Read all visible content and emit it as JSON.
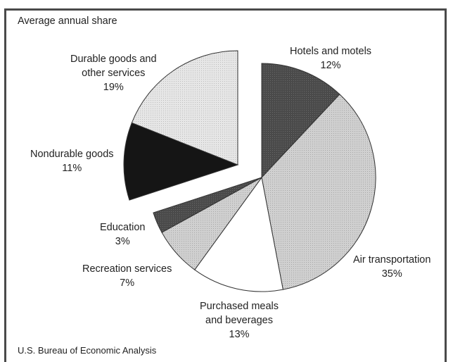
{
  "chart_data": {
    "type": "pie",
    "title": "",
    "subtitle": "Average annual share",
    "source": "U.S. Bureau of Economic Analysis",
    "unit": "%",
    "slices": [
      {
        "name": "Hotels and motels",
        "value": 12,
        "color": "#4a4a4a",
        "pattern": "dark",
        "exploded": false
      },
      {
        "name": "Air transportation",
        "value": 35,
        "color": "#cdcdcd",
        "pattern": "light-dotted",
        "exploded": false
      },
      {
        "name": "Purchased meals and beverages",
        "value": 13,
        "color": "#ffffff",
        "pattern": "none",
        "exploded": false
      },
      {
        "name": "Recreation services",
        "value": 7,
        "color": "#d9d9d9",
        "pattern": "light-dotted",
        "exploded": false
      },
      {
        "name": "Education",
        "value": 3,
        "color": "#4a4a4a",
        "pattern": "dark",
        "exploded": false
      },
      {
        "name": "Nondurable goods",
        "value": 11,
        "color": "#141414",
        "pattern": "black",
        "exploded": true
      },
      {
        "name": "Durable goods and other services",
        "value": 19,
        "color": "#e6e6e6",
        "pattern": "light-dotted",
        "exploded": true
      }
    ],
    "labels": {
      "hotels_name": "Hotels and motels",
      "hotels_pct": "12%",
      "air_name": "Air transportation",
      "air_pct": "35%",
      "meals_name_1": "Purchased meals",
      "meals_name_2": "and beverages",
      "meals_pct": "13%",
      "recreation_name": "Recreation services",
      "recreation_pct": "7%",
      "education_name": "Education",
      "education_pct": "3%",
      "nondurable_name": "Nondurable goods",
      "nondurable_pct": "11%",
      "durable_name_1": "Durable goods and",
      "durable_name_2": "other services",
      "durable_pct": "19%"
    }
  }
}
